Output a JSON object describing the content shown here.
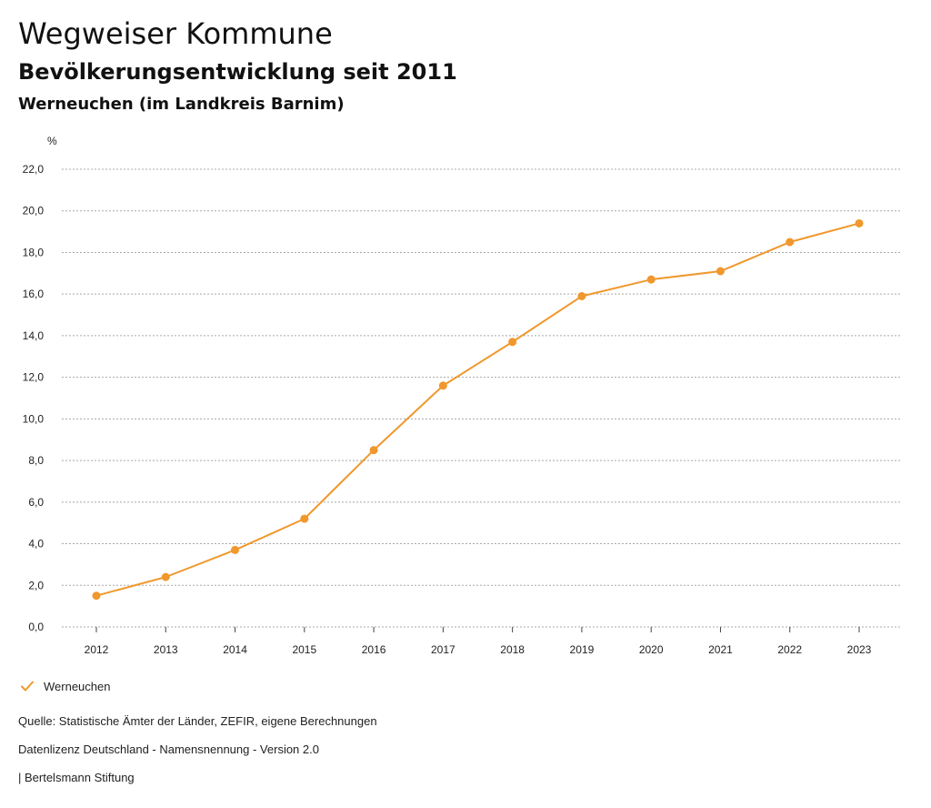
{
  "header": {
    "title": "Wegweiser Kommune",
    "subtitle": "Bevölkerungsentwicklung seit 2011",
    "region": "Werneuchen (im Landkreis Barnim)"
  },
  "chart_data": {
    "type": "line",
    "title": "Bevölkerungsentwicklung seit 2011",
    "xlabel": "",
    "ylabel": "%",
    "x": [
      "2012",
      "2013",
      "2014",
      "2015",
      "2016",
      "2017",
      "2018",
      "2019",
      "2020",
      "2021",
      "2022",
      "2023"
    ],
    "series": [
      {
        "name": "Werneuchen",
        "color": "#f0982d",
        "values": [
          1.5,
          2.4,
          3.7,
          5.2,
          8.5,
          11.6,
          13.7,
          15.9,
          16.7,
          17.1,
          18.5,
          19.4
        ]
      }
    ],
    "ylim": [
      0,
      22
    ],
    "yticks": [
      "0,0",
      "2,0",
      "4,0",
      "6,0",
      "8,0",
      "10,0",
      "12,0",
      "14,0",
      "16,0",
      "18,0",
      "20,0",
      "22,0"
    ],
    "grid": true,
    "legend": "bottom-left"
  },
  "legend": {
    "label": "Werneuchen"
  },
  "footer": {
    "source": "Quelle: Statistische Ämter der Länder, ZEFIR, eigene Berechnungen",
    "license": "Datenlizenz Deutschland - Namensnennung - Version 2.0",
    "publisher": "| Bertelsmann Stiftung"
  }
}
